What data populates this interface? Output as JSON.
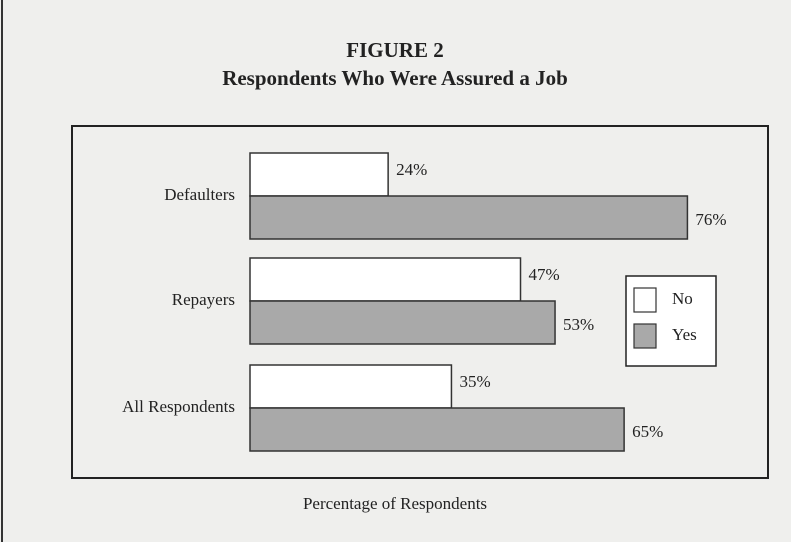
{
  "chart_data": {
    "type": "bar",
    "orientation": "horizontal",
    "figure_label": "FIGURE 2",
    "title": "Respondents Who Were Assured a Job",
    "x_label": "Percentage of Respondents",
    "categories": [
      "Defaulters",
      "Repayers",
      "All Respondents"
    ],
    "series": [
      {
        "name": "No",
        "color": "#ffffff",
        "values": [
          24,
          47,
          35
        ],
        "value_labels": [
          "24%",
          "47%",
          "35%"
        ]
      },
      {
        "name": "Yes",
        "color": "#a9a9a9",
        "values": [
          76,
          53,
          65
        ],
        "value_labels": [
          "76%",
          "53%",
          "65%"
        ]
      }
    ],
    "xlim": [
      0,
      90
    ],
    "legend": "right"
  }
}
